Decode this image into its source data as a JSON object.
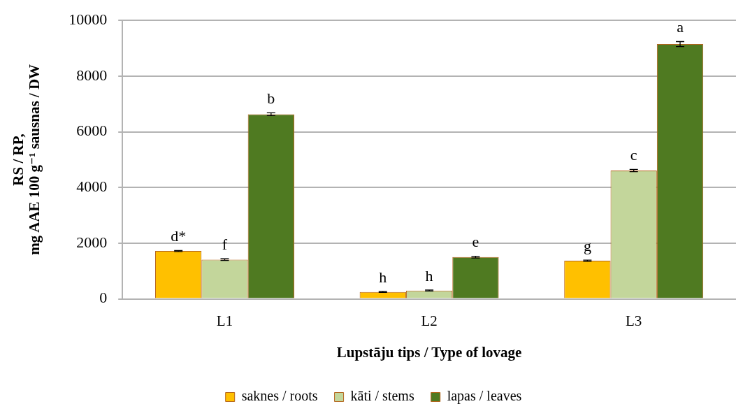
{
  "chart_data": {
    "type": "bar",
    "xlabel": "Lupstāju tips / Type of lovage",
    "ylabel": "RS / RP,\nmg AAE 100 g⁻¹ sausnas / DW",
    "categories": [
      "L1",
      "L2",
      "L3"
    ],
    "series": [
      {
        "name": "saknes / roots",
        "color": "#ffc000",
        "values": [
          1720,
          250,
          1370
        ],
        "errors": [
          20,
          20,
          20
        ],
        "value_labels": [
          "d*",
          "h",
          "g"
        ]
      },
      {
        "name": "kāti / stems",
        "color": "#c3d69b",
        "values": [
          1410,
          300,
          4610
        ],
        "errors": [
          30,
          20,
          40
        ],
        "value_labels": [
          "f",
          "h",
          "c"
        ]
      },
      {
        "name": "lapas / leaves",
        "color": "#4f7a21",
        "values": [
          6630,
          1500,
          9150
        ],
        "errors": [
          50,
          30,
          90
        ],
        "value_labels": [
          "b",
          "e",
          "a"
        ]
      }
    ],
    "ylim": [
      0,
      10000
    ],
    "yticks": [
      0,
      2000,
      4000,
      6000,
      8000,
      10000
    ],
    "grid": "y",
    "legend": "bottom"
  }
}
